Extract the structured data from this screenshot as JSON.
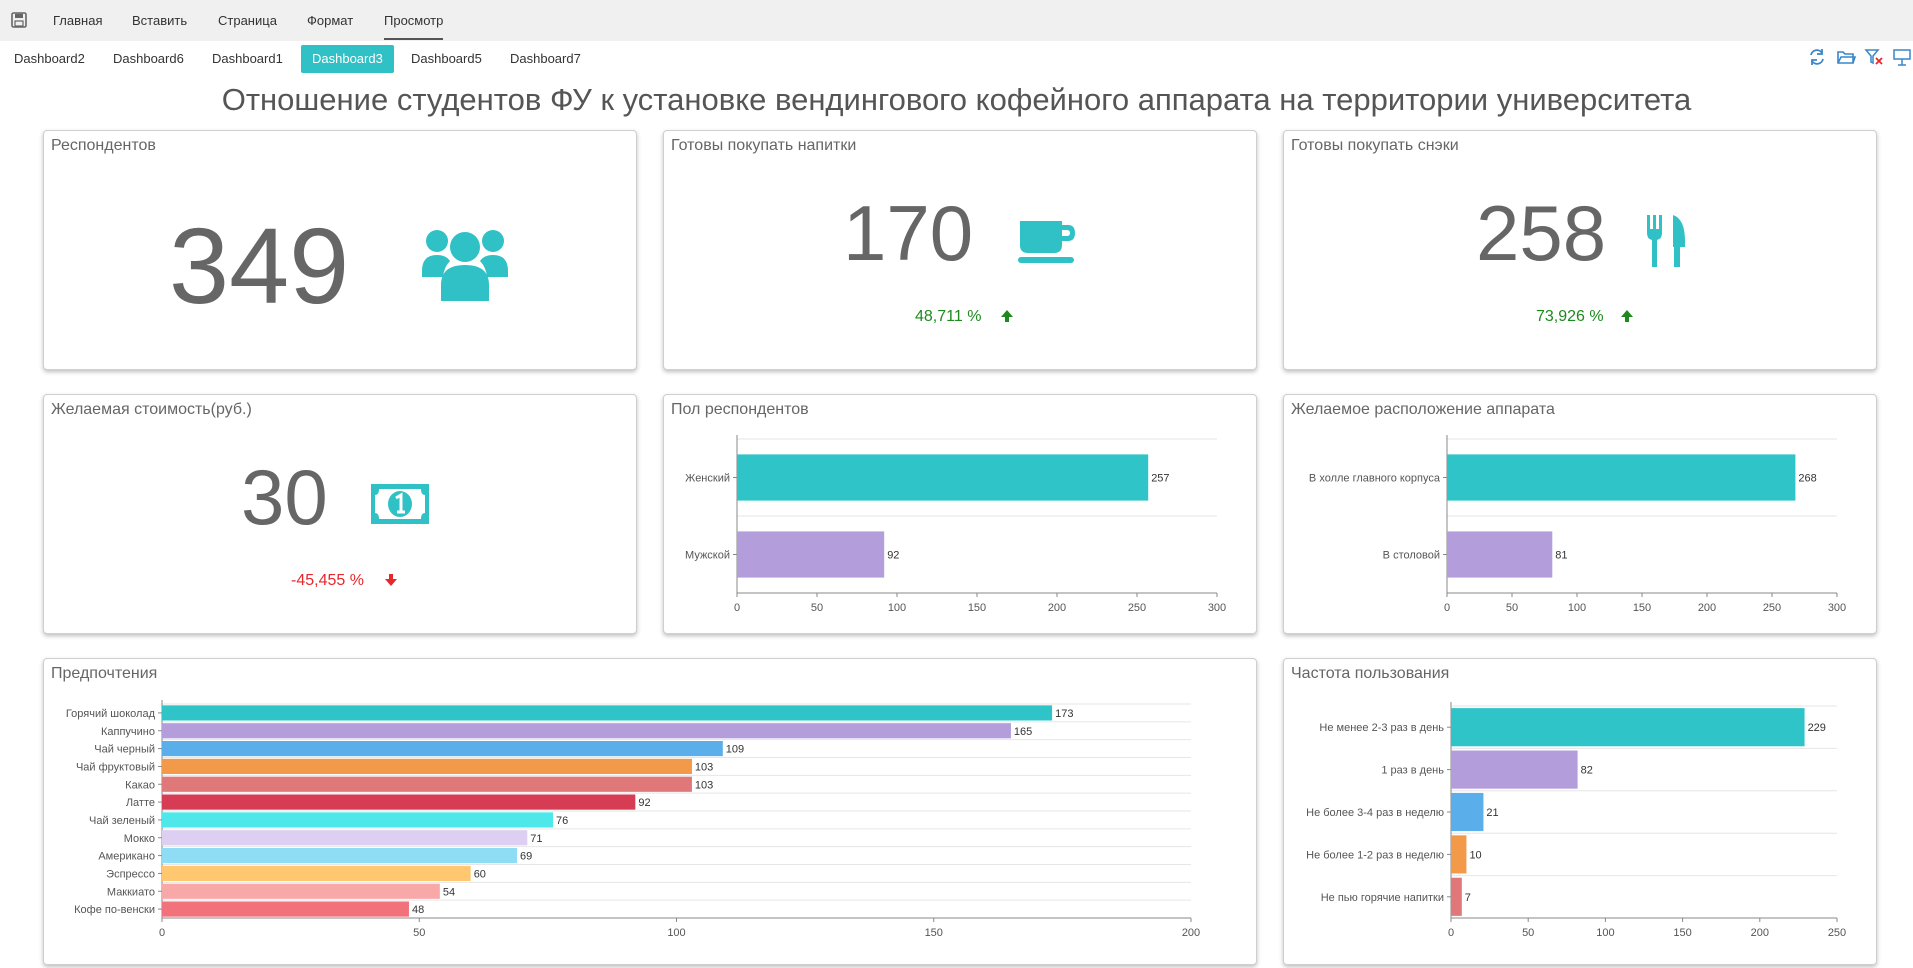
{
  "menu": {
    "items": [
      {
        "label": "Главная",
        "active": false
      },
      {
        "label": "Вставить",
        "active": false
      },
      {
        "label": "Страница",
        "active": false
      },
      {
        "label": "Формат",
        "active": false
      },
      {
        "label": "Просмотр",
        "active": true
      }
    ]
  },
  "tabs": [
    {
      "label": "Dashboard2",
      "active": false
    },
    {
      "label": "Dashboard6",
      "active": false
    },
    {
      "label": "Dashboard1",
      "active": false
    },
    {
      "label": "Dashboard3",
      "active": true
    },
    {
      "label": "Dashboard5",
      "active": false
    },
    {
      "label": "Dashboard7",
      "active": false
    }
  ],
  "toolbar_icons": [
    "refresh-icon",
    "open-folder-icon",
    "clear-filter-icon",
    "presentation-icon"
  ],
  "page_title": "Отношение студентов ФУ к установке вендингового кофейного аппарата на территории университета",
  "colors": {
    "accent": "#2fc1c5",
    "up": "#1d8a1d",
    "down": "#e8272c",
    "kpi_text": "#666666"
  },
  "kpi": {
    "respondents": {
      "title": "Респондентов",
      "value": "349",
      "icon": "users-icon"
    },
    "drinks": {
      "title": "Готовы покупать напитки",
      "value": "170",
      "delta": "48,711 %",
      "trend": "up",
      "icon": "coffee-cup-icon"
    },
    "snacks": {
      "title": "Готовы покупать снэки",
      "value": "258",
      "delta": "73,926 %",
      "trend": "up",
      "icon": "utensils-icon"
    },
    "price": {
      "title": "Желаемая стоимость(руб.)",
      "value": "30",
      "delta": "-45,455 %",
      "trend": "down",
      "icon": "money-icon"
    }
  },
  "chart_data": [
    {
      "id": "gender",
      "type": "bar",
      "orientation": "horizontal",
      "title": "Пол респондентов",
      "categories": [
        "Женский",
        "Мужской"
      ],
      "values": [
        257,
        92
      ],
      "colors": [
        "#2fc4c7",
        "#b39ddb"
      ],
      "xlim": [
        0,
        300
      ],
      "xticks": [
        "0",
        "50",
        "100",
        "150",
        "200",
        "250",
        "300"
      ],
      "grid": true
    },
    {
      "id": "location",
      "type": "bar",
      "orientation": "horizontal",
      "title": "Желаемое расположение аппарата",
      "categories": [
        "В холле главного корпуса",
        "В столовой"
      ],
      "values": [
        268,
        81
      ],
      "colors": [
        "#2fc4c7",
        "#b39ddb"
      ],
      "xlim": [
        0,
        300
      ],
      "xticks": [
        "0",
        "50",
        "100",
        "150",
        "200",
        "250",
        "300"
      ],
      "grid": true
    },
    {
      "id": "prefs",
      "type": "bar",
      "orientation": "horizontal",
      "title": "Предпочтения",
      "categories": [
        "Горячий шоколад",
        "Каппучино",
        "Чай черный",
        "Чай фруктовый",
        "Какао",
        "Латте",
        "Чай зеленый",
        "Мокко",
        "Американо",
        "Эспрессо",
        "Маккиато",
        "Кофе по-венски"
      ],
      "values": [
        173,
        165,
        109,
        103,
        103,
        92,
        76,
        71,
        69,
        60,
        54,
        48
      ],
      "colors": [
        "#2fc4c7",
        "#b39ddb",
        "#5aaeea",
        "#f2994a",
        "#e0787a",
        "#d63c53",
        "#4ee8ea",
        "#dccff2",
        "#8fdcf5",
        "#ffc870",
        "#f9a8a8",
        "#f2727c"
      ],
      "xlim": [
        0,
        200
      ],
      "xticks": [
        "0",
        "50",
        "100",
        "150",
        "200"
      ],
      "grid": true
    },
    {
      "id": "freq",
      "type": "bar",
      "orientation": "horizontal",
      "title": "Частота пользования",
      "categories": [
        "Не менее 2-3 раз в день",
        "1 раз в день",
        "Не более 3-4 раз в неделю",
        "Не более 1-2 раз в неделю",
        "Не пью горячие напитки"
      ],
      "values": [
        229,
        82,
        21,
        10,
        7
      ],
      "colors": [
        "#2fc4c7",
        "#b39ddb",
        "#5aaeea",
        "#f2994a",
        "#e0787a"
      ],
      "xlim": [
        0,
        250
      ],
      "xticks": [
        "0",
        "50",
        "100",
        "150",
        "200",
        "250"
      ],
      "grid": true
    }
  ]
}
